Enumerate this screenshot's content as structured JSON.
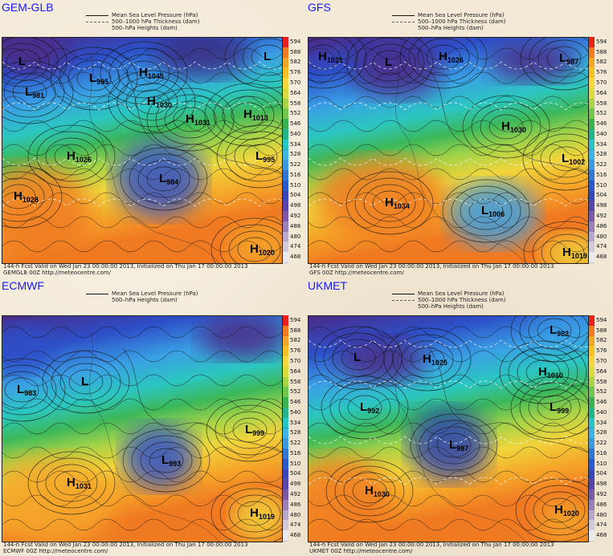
{
  "panels": [
    {
      "id": "gem-glb",
      "title": "GEM-GLB",
      "legend": [
        "Mean Sea Level Pressure (hPa)",
        "500–1000 hPa Thickness (dam)",
        "500–hPa Heights (dam)"
      ],
      "footer_line1": "144-h Fcst Valid on Wed Jan 23 00:00:00 2013, Initialized on Thu Jan 17 00:00:00 2013",
      "footer_line2": "GEMGLB 00Z http://meteocentre.com/",
      "centers": [
        {
          "type": "L",
          "value": ""
        },
        {
          "type": "L",
          "value": "995"
        },
        {
          "type": "L",
          "value": "981"
        },
        {
          "type": "H",
          "value": "1045"
        },
        {
          "type": "H",
          "value": "1030"
        },
        {
          "type": "H",
          "value": "1031"
        },
        {
          "type": "L",
          "value": ""
        },
        {
          "type": "H",
          "value": "1013"
        },
        {
          "type": "H",
          "value": "1026"
        },
        {
          "type": "L",
          "value": "984"
        },
        {
          "type": "L",
          "value": "995"
        },
        {
          "type": "H",
          "value": "1028"
        },
        {
          "type": "H",
          "value": "1020"
        }
      ]
    },
    {
      "id": "gfs",
      "title": "GFS",
      "legend": [
        "Mean Sea Level Pressure (hPa)",
        "500–1000 hPa Thickness (dam)",
        "500–hPa Heights (dam)"
      ],
      "footer_line1": "144-h Fcst Valid on Wed Jan 23 00:00:00 2013, Initialized on Thu Jan 17 00:00:00 2013",
      "footer_line2": "GFS 00Z http://meteocentre.com/",
      "centers": [
        {
          "type": "H",
          "value": "1021"
        },
        {
          "type": "L",
          "value": ""
        },
        {
          "type": "H",
          "value": "1026"
        },
        {
          "type": "L",
          "value": "987"
        },
        {
          "type": "H",
          "value": "1030"
        },
        {
          "type": "L",
          "value": "1002"
        },
        {
          "type": "H",
          "value": "1034"
        },
        {
          "type": "L",
          "value": "1006"
        },
        {
          "type": "H",
          "value": "1019"
        }
      ]
    },
    {
      "id": "ecmwf",
      "title": "ECMWF",
      "legend": [
        "Mean Sea Level Pressure (hPa)",
        "500–hPa Heights (dam)",
        ""
      ],
      "footer_line1": "144-h Fcst Valid on Wed Jan 23 00:00:00 2013, Initialized on Thu Jan 17 00:00:00 2013",
      "footer_line2": "ECMWF 00Z http://meteocentre.com/",
      "centers": [
        {
          "type": "L",
          "value": "983"
        },
        {
          "type": "L",
          "value": ""
        },
        {
          "type": "L",
          "value": "999"
        },
        {
          "type": "L",
          "value": "993"
        },
        {
          "type": "H",
          "value": "1031"
        },
        {
          "type": "H",
          "value": "1019"
        }
      ]
    },
    {
      "id": "ukmet",
      "title": "UKMET",
      "legend": [
        "Mean Sea Level Pressure (hPa)",
        "500–1000 hPa Thickness (dam)",
        "500–hPa Heights (dam)"
      ],
      "footer_line1": "144-h Fcst Valid on Wed Jan 23 00:00:00 2013, Initialized on Thu Jan 17 00:00:00 2013",
      "footer_line2": "UKMET 00Z http://meteocentre.com/",
      "centers": [
        {
          "type": "L",
          "value": ""
        },
        {
          "type": "H",
          "value": "1025"
        },
        {
          "type": "L",
          "value": "992"
        },
        {
          "type": "L",
          "value": "982"
        },
        {
          "type": "H",
          "value": "1010"
        },
        {
          "type": "L",
          "value": "999"
        },
        {
          "type": "L",
          "value": "987"
        },
        {
          "type": "H",
          "value": "1030"
        },
        {
          "type": "H",
          "value": "1020"
        }
      ]
    }
  ],
  "colorbar": {
    "levels": [
      "594",
      "588",
      "582",
      "576",
      "570",
      "564",
      "558",
      "552",
      "546",
      "540",
      "534",
      "528",
      "522",
      "516",
      "510",
      "504",
      "498",
      "492",
      "486",
      "480",
      "474",
      "468"
    ],
    "colors": [
      "#e8231e",
      "#f47a1e",
      "#f5a623",
      "#f7c221",
      "#f4d93a",
      "#d9dd3c",
      "#a9d443",
      "#6fc84a",
      "#38b34f",
      "#22b58a",
      "#2bc3c6",
      "#3bb4e6",
      "#3a9be3",
      "#2f78d8",
      "#2a5ad0",
      "#3a47bb",
      "#5a45b0",
      "#7d5aa8",
      "#9a7fb8",
      "#b8a8cc",
      "#d2cad9",
      "#ebe8ef"
    ]
  }
}
